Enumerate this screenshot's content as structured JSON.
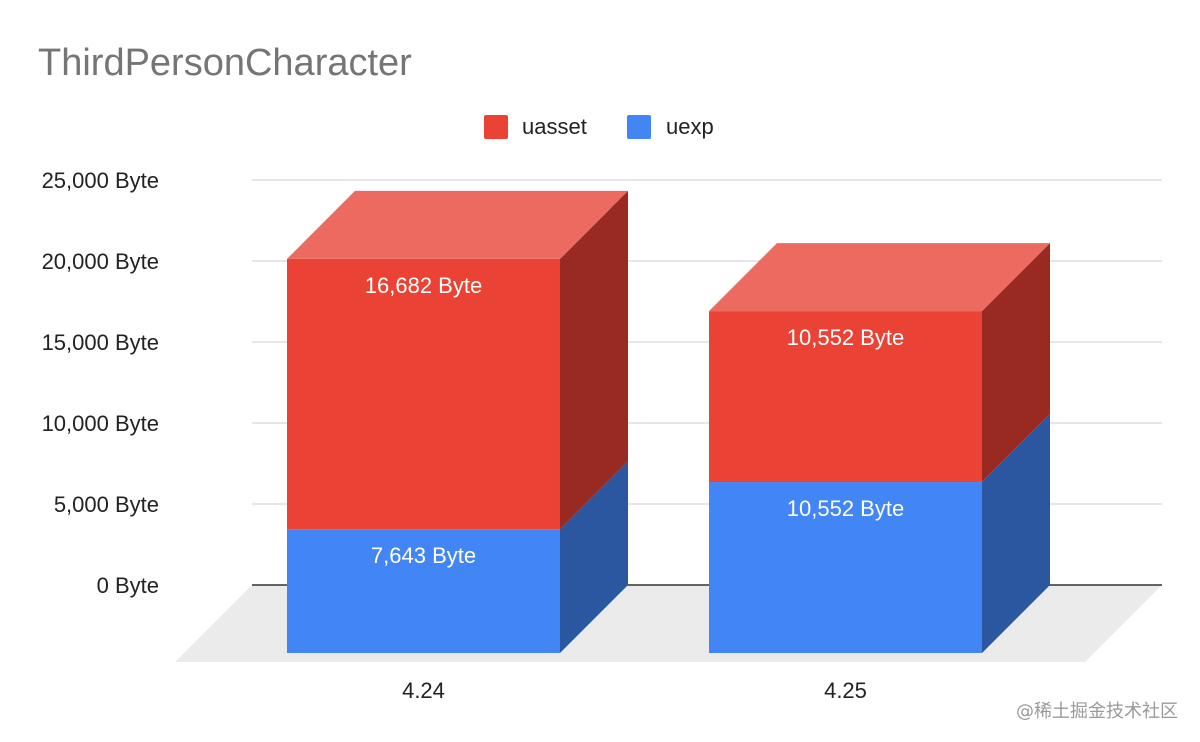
{
  "chart_data": {
    "type": "bar",
    "stacked": true,
    "three_d": true,
    "title": "ThirdPersonCharacter",
    "categories": [
      "4.24",
      "4.25"
    ],
    "series": [
      {
        "name": "uexp",
        "values": [
          7643,
          10552
        ],
        "labels": [
          "7,643 Byte",
          "10,552 Byte"
        ]
      },
      {
        "name": "uasset",
        "values": [
          16682,
          10552
        ],
        "labels": [
          "16,682 Byte",
          "10,552 Byte"
        ]
      }
    ],
    "legend": {
      "position": "top",
      "items": [
        "uasset",
        "uexp"
      ]
    },
    "ylim": [
      0,
      25000
    ],
    "yticks": [
      "0 Byte",
      "5,000 Byte",
      "10,000 Byte",
      "15,000 Byte",
      "20,000 Byte",
      "25,000 Byte"
    ],
    "grid": true
  },
  "colors": {
    "uasset": "#EA4335",
    "uasset_top": "#EC6A5F",
    "uasset_side": "#992A22",
    "uexp": "#4285F4",
    "uexp_top": "#6AA0F6",
    "uexp_side": "#2B57A0",
    "floor": "#EBEBEB",
    "grid": "#CCCCCC",
    "axis": "#333333"
  },
  "watermark": "@稀土掘金技术社区"
}
